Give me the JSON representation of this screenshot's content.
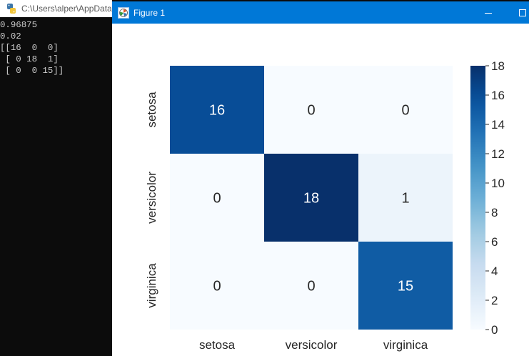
{
  "console": {
    "title": "C:\\Users\\alper\\AppData",
    "output_lines": [
      "0.96875",
      "0.02",
      "[[16  0  0]",
      " [ 0 18  1]",
      " [ 0  0 15]]"
    ]
  },
  "figure_window": {
    "title": "Figure 1",
    "accent_color": "#0078d7"
  },
  "chart_data": {
    "type": "heatmap",
    "x_categories": [
      "setosa",
      "versicolor",
      "virginica"
    ],
    "y_categories": [
      "setosa",
      "versicolor",
      "virginica"
    ],
    "values": [
      [
        16,
        0,
        0
      ],
      [
        0,
        18,
        1
      ],
      [
        0,
        0,
        15
      ]
    ],
    "colorbar": {
      "min": 0,
      "max": 18,
      "ticks": [
        0,
        2,
        4,
        6,
        8,
        10,
        12,
        14,
        16,
        18
      ]
    },
    "colormap": "Blues",
    "annotations": true
  }
}
